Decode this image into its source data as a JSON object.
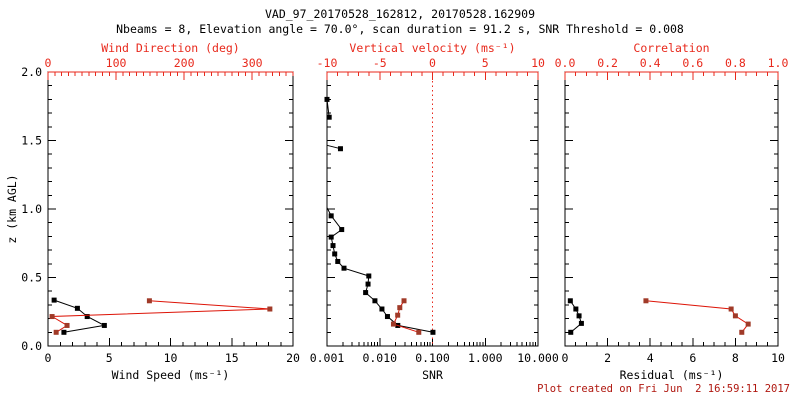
{
  "header": {
    "title": "VAD_97_20170528_162812, 20170528.162909",
    "subtitle": "Nbeams = 8, Elevation angle = 70.0°, scan duration = 91.2 s, SNR Threshold = 0.008"
  },
  "footer": {
    "text": "Plot created on Fri Jun  2 16:59:11 2017"
  },
  "colors": {
    "black": "#000000",
    "axis_red": "#e8291c",
    "line_red": "#dd1508",
    "marker_red": "#a03a28",
    "background": "#ffffff"
  },
  "chart_data": {
    "type": "line",
    "title": "VAD_97_20170528_162812, 20170528.162909",
    "subtitle": "Nbeams = 8, Elevation angle = 70.0°, scan duration = 91.2 s, SNR Threshold = 0.008",
    "y_axis": {
      "label": "z (km AGL)",
      "range": [
        0.0,
        2.0
      ],
      "tick_values": [
        0.0,
        0.5,
        1.0,
        1.5,
        2.0
      ],
      "tick_labels": [
        "0.0",
        "0.5",
        "1.0",
        "1.5",
        "2.0"
      ],
      "minor_step": 0.1
    },
    "panels": [
      {
        "id": "wind",
        "bottom_axis": {
          "label": "Wind Speed (ms⁻¹)",
          "range": [
            0,
            20
          ],
          "tick_values": [
            0,
            5,
            10,
            15,
            20
          ],
          "tick_labels": [
            "0",
            "5",
            "10",
            "15",
            "20"
          ],
          "minor_step": 1,
          "color": "black"
        },
        "top_axis": {
          "label": "Wind Direction (deg)",
          "range": [
            0,
            360
          ],
          "tick_values": [
            0,
            100,
            200,
            300
          ],
          "tick_labels": [
            "0",
            "100",
            "200",
            "300"
          ],
          "minor_step": 10,
          "color": "red"
        },
        "series": [
          {
            "name": "wind-speed",
            "axis": "bottom",
            "color": "black",
            "z": [
              0.1,
              0.15,
              0.215,
              0.275,
              0.335
            ],
            "values": [
              1.3,
              4.6,
              3.2,
              2.4,
              0.5
            ]
          },
          {
            "name": "wind-direction",
            "axis": "top",
            "color": "red",
            "z": [
              0.1,
              0.15,
              0.215,
              0.27,
              0.33
            ],
            "values": [
              12,
              28,
              6,
              326,
              149
            ]
          }
        ]
      },
      {
        "id": "snr",
        "bottom_axis": {
          "label": "SNR",
          "scale": "log",
          "range": [
            0.001,
            10
          ],
          "tick_values": [
            0.001,
            0.01,
            0.1,
            1,
            10
          ],
          "tick_labels": [
            "0.001",
            "0.010",
            "0.100",
            "1.000",
            "10.000"
          ],
          "color": "black"
        },
        "top_axis": {
          "label": "Vertical velocity (ms⁻¹)",
          "range": [
            -10,
            10
          ],
          "tick_values": [
            -10,
            -5,
            0,
            5,
            10
          ],
          "tick_labels": [
            "-10",
            "-5",
            "0",
            "5",
            "10"
          ],
          "minor_step": 1,
          "color": "red"
        },
        "reference_line": {
          "axis": "top",
          "value": 0,
          "style": "dotted",
          "color": "red"
        },
        "series": [
          {
            "name": "snr-profile",
            "axis": "bottom",
            "color": "black",
            "z": [
              1.8,
              1.67,
              1.44,
              0.95,
              0.85,
              0.795,
              0.733,
              0.672,
              0.617,
              0.568,
              0.511,
              0.452,
              0.39,
              0.33,
              0.27,
              0.215,
              0.15,
              0.1
            ],
            "values": [
              0.001,
              0.0011,
              0.0018,
              0.0012,
              0.0019,
              0.0012,
              0.0013,
              0.0014,
              0.0016,
              0.0021,
              0.0062,
              0.006,
              0.0054,
              0.0081,
              0.011,
              0.014,
              0.022,
              0.102
            ],
            "segments": [
              [
                0,
                1
              ],
              [
                2,
                2
              ],
              [
                3,
                17
              ]
            ],
            "edge_leaders": [
              {
                "attach_index": 2,
                "z": 1.465
              },
              {
                "attach_index": 3,
                "z": 1.01
              }
            ]
          },
          {
            "name": "vertical-velocity",
            "axis": "top",
            "color": "red",
            "z": [
              0.1,
              0.16,
              0.225,
              0.28,
              0.33
            ],
            "values": [
              -1.3,
              -3.7,
              -3.3,
              -3.1,
              -2.7
            ]
          }
        ]
      },
      {
        "id": "residual",
        "bottom_axis": {
          "label": "Residual (ms⁻¹)",
          "range": [
            0,
            10
          ],
          "tick_values": [
            0,
            2,
            4,
            6,
            8,
            10
          ],
          "tick_labels": [
            "0",
            "2",
            "4",
            "6",
            "8",
            "10"
          ],
          "minor_step": 0.5,
          "color": "black"
        },
        "top_axis": {
          "label": "Correlation",
          "range": [
            0.0,
            1.0
          ],
          "tick_values": [
            0.0,
            0.2,
            0.4,
            0.6,
            0.8,
            1.0
          ],
          "tick_labels": [
            "0.0",
            "0.2",
            "0.4",
            "0.6",
            "0.8",
            "1.0"
          ],
          "minor_step": 0.05,
          "color": "red"
        },
        "series": [
          {
            "name": "residual",
            "axis": "bottom",
            "color": "black",
            "z": [
              0.1,
              0.165,
              0.22,
              0.27,
              0.33
            ],
            "values": [
              0.27,
              0.77,
              0.66,
              0.51,
              0.25
            ]
          },
          {
            "name": "correlation",
            "axis": "top",
            "color": "red",
            "z": [
              0.1,
              0.16,
              0.22,
              0.27,
              0.33
            ],
            "values": [
              0.83,
              0.86,
              0.8,
              0.78,
              0.38
            ]
          }
        ]
      }
    ]
  }
}
